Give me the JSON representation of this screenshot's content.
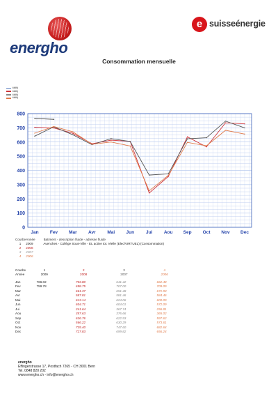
{
  "header": {
    "left_logo": "energho",
    "right_logo": "suisseénergie",
    "right_badge": "e"
  },
  "title": "Consommation mensuelle",
  "legend": [
    {
      "label": "kWh|",
      "color": "#5a7fbf"
    },
    {
      "label": "kWh|",
      "color": "#d0343a"
    },
    {
      "label": "kWh|",
      "color": "#8a8a8a"
    },
    {
      "label": "kWh|",
      "color": "#e07a4a"
    }
  ],
  "chart_data": {
    "type": "line",
    "categories": [
      "Jan",
      "Fev",
      "Mar",
      "Avr",
      "Mai",
      "Jun",
      "Jui",
      "Aou",
      "Sep",
      "Oct",
      "Nov",
      "Dec"
    ],
    "y_ticks": [
      "0",
      "100",
      "200",
      "300",
      "400",
      "500",
      "600",
      "700",
      "800"
    ],
    "ylim": [
      0,
      800
    ],
    "series": [
      {
        "name": "2009",
        "color": "#333333",
        "values": [
          766.02,
          759.78,
          null,
          null,
          null,
          null,
          null,
          null,
          null,
          null,
          null,
          null
        ]
      },
      {
        "name": "2008",
        "color": "#d0343a",
        "values": [
          703.8,
          698.75,
          661.37,
          587.81,
          613.14,
          604.71,
          241.64,
          357.63,
          636.76,
          566.22,
          735.4,
          727.83
        ]
      },
      {
        "name": "2007",
        "color": "#555555",
        "values": [
          641.42,
          707.0,
          651.48,
          581.46,
          624.06,
          604.01,
          367.74,
          376.66,
          622.93,
          630.29,
          747.6,
          699.82
        ]
      },
      {
        "name": "2006",
        "color": "#e07a4a",
        "values": [
          662.48,
          709.09,
          671.93,
          584.46,
          600.09,
          572.09,
          256.81,
          365.02,
          597.62,
          573.61,
          682.64,
          656.24
        ]
      }
    ],
    "grid": true,
    "legend_position": "top-left"
  },
  "meta": {
    "col_courbe": "Courbe",
    "col_annee": "Année",
    "col_desc": "Batiment - description fluide - adresse fluide",
    "rows": [
      {
        "n": "1",
        "year": "2009",
        "desc": "Avenches - Collège Sous-Ville - EL active tot. réelle (Elec/VIRTUEL) (Consommation)"
      },
      {
        "n": "2",
        "year": "2008",
        "desc": ""
      },
      {
        "n": "3",
        "year": "2007",
        "desc": ""
      },
      {
        "n": "4",
        "year": "2006",
        "desc": ""
      }
    ]
  },
  "table": {
    "head_courbe": "Courbe",
    "head_annee": "Année",
    "curves": [
      "1",
      "2",
      "3",
      "4"
    ],
    "years": [
      "2009",
      "2008",
      "2007",
      "2006"
    ],
    "rows": [
      {
        "m": "Jan",
        "v": [
          "766.02",
          "703.80",
          "641.42",
          "662.48"
        ]
      },
      {
        "m": "Fev",
        "v": [
          "759.78",
          "698.75",
          "707.00",
          "709.09"
        ]
      },
      {
        "m": "Mar",
        "v": [
          "",
          "661.37",
          "651.48",
          "671.93"
        ]
      },
      {
        "m": "Avr",
        "v": [
          "",
          "587.81",
          "581.46",
          "584.46"
        ]
      },
      {
        "m": "Mai",
        "v": [
          "",
          "613.14",
          "624.06",
          "600.09"
        ]
      },
      {
        "m": "Jun",
        "v": [
          "",
          "604.71",
          "604.01",
          "572.09"
        ]
      },
      {
        "m": "Jui",
        "v": [
          "",
          "241.64",
          "367.74",
          "256.81"
        ]
      },
      {
        "m": "Aou",
        "v": [
          "",
          "357.63",
          "376.66",
          "365.02"
        ]
      },
      {
        "m": "Sep",
        "v": [
          "",
          "636.76",
          "622.93",
          "597.62"
        ]
      },
      {
        "m": "Oct",
        "v": [
          "",
          "566.22",
          "630.29",
          "573.61"
        ]
      },
      {
        "m": "Nov",
        "v": [
          "",
          "735.40",
          "747.60",
          "682.64"
        ]
      },
      {
        "m": "Dec",
        "v": [
          "",
          "727.83",
          "699.82",
          "656.24"
        ]
      }
    ]
  },
  "footer": {
    "name": "energho",
    "address": "Effingerstrasse 17, Postfach 7265 - CH 3001 Bern",
    "tel": "Tel. 0848 820 202",
    "web": "www.energho.ch - info@energho.ch"
  }
}
